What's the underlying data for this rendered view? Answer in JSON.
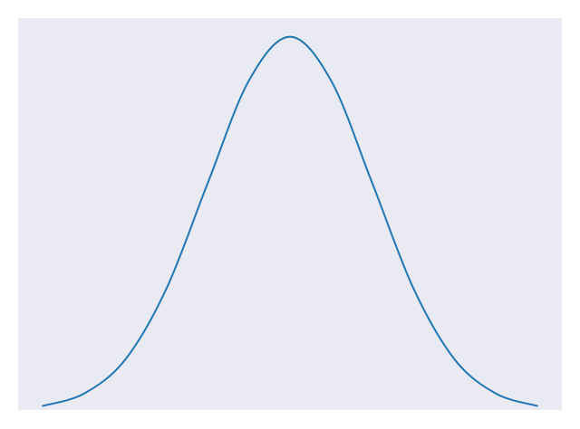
{
  "colors": {
    "figure_background": "#ffffff",
    "plot_background": "#eaeaf2",
    "line": "#1f77b4"
  },
  "chart_data": {
    "type": "line",
    "title": "",
    "xlabel": "",
    "ylabel": "",
    "grid": false,
    "axes_visible": false,
    "legend": "none",
    "curve_shape": "gaussian",
    "xlim": [
      -3.3,
      3.3
    ],
    "ylim": [
      0,
      1.05
    ],
    "series": [
      {
        "x": [
          -3.0,
          -2.5,
          -2.0,
          -1.5,
          -1.0,
          -0.5,
          0.0,
          0.5,
          1.0,
          1.5,
          2.0,
          2.5,
          3.0
        ],
        "y": [
          0.011,
          0.044,
          0.135,
          0.325,
          0.607,
          0.882,
          1.0,
          0.882,
          0.607,
          0.325,
          0.135,
          0.044,
          0.011
        ]
      }
    ]
  }
}
